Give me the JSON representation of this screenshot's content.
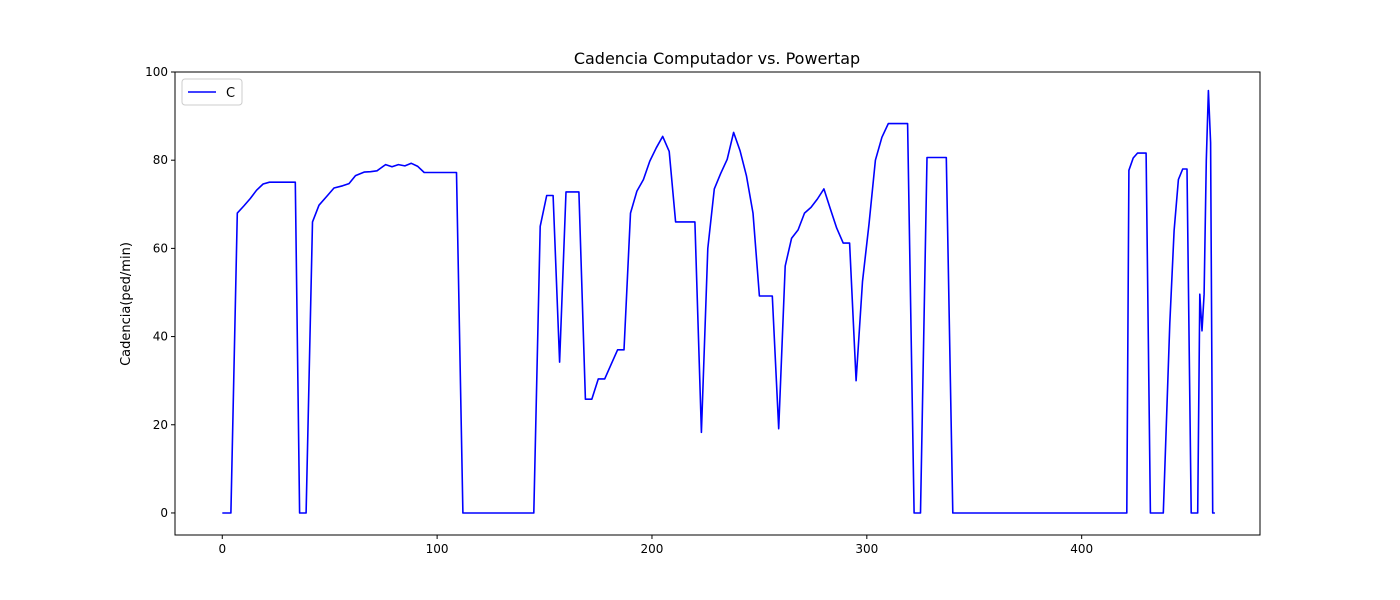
{
  "chart_data": {
    "type": "line",
    "title": "Cadencia Computador vs. Powertap",
    "xlabel": "",
    "ylabel": "Cadencia(ped/min)",
    "xlim": [
      -22,
      483
    ],
    "ylim": [
      -5,
      100
    ],
    "xticks": [
      0,
      100,
      200,
      300,
      400
    ],
    "yticks": [
      0,
      20,
      40,
      60,
      80,
      100
    ],
    "grid": false,
    "legend_position": "upper-left",
    "series": [
      {
        "name": "C",
        "color": "#0000ff",
        "x": [
          0,
          4,
          7,
          10,
          13,
          16,
          19,
          22,
          25,
          28,
          31,
          34,
          36,
          39,
          42,
          45,
          49,
          52,
          56,
          59,
          62,
          66,
          69,
          72,
          76,
          79,
          82,
          85,
          88,
          91,
          94,
          97,
          100,
          103,
          106,
          109,
          112,
          115,
          118,
          121,
          145,
          148,
          151,
          154,
          157,
          160,
          163,
          166,
          169,
          172,
          175,
          178,
          181,
          184,
          187,
          190,
          193,
          196,
          199,
          202,
          205,
          208,
          211,
          214,
          217,
          220,
          223,
          226,
          229,
          232,
          235,
          238,
          241,
          244,
          247,
          250,
          253,
          256,
          259,
          262,
          265,
          268,
          271,
          274,
          277,
          280,
          283,
          286,
          289,
          292,
          295,
          298,
          301,
          304,
          307,
          310,
          313,
          316,
          319,
          322,
          325,
          328,
          331,
          334,
          337,
          340,
          343,
          421,
          422,
          424,
          426,
          428,
          430,
          432,
          435,
          438,
          441,
          443,
          445,
          447,
          449,
          451,
          452,
          454,
          455,
          456,
          457,
          458,
          459,
          460,
          461,
          462
        ],
        "values": [
          0,
          0,
          68,
          69.6,
          71.3,
          73.2,
          74.6,
          75,
          75,
          75,
          75,
          75,
          0,
          0,
          66,
          69.8,
          72,
          73.7,
          74.2,
          74.7,
          76.5,
          77.3,
          77.4,
          77.6,
          79,
          78.5,
          79,
          78.7,
          79.3,
          78.6,
          77.2,
          77.2,
          77.2,
          77.2,
          77.2,
          77.2,
          0,
          0,
          0,
          0,
          0,
          65,
          72,
          72,
          34.2,
          72.8,
          72.8,
          72.8,
          25.8,
          25.8,
          30.4,
          30.4,
          33.7,
          37,
          37,
          68,
          73,
          75.6,
          79.8,
          82.8,
          85.4,
          82,
          66,
          66,
          66,
          66,
          18.3,
          60,
          73.5,
          77,
          80.2,
          86.3,
          82.1,
          76.4,
          68,
          49.2,
          49.2,
          49.2,
          19.1,
          56,
          62.3,
          64.2,
          68,
          69.3,
          71.2,
          73.5,
          69,
          64.6,
          61.2,
          61.2,
          30,
          52.5,
          65.5,
          80,
          85.2,
          88.3,
          88.3,
          88.3,
          88.3,
          0,
          0,
          80.6,
          80.6,
          80.6,
          80.6,
          0,
          0,
          0,
          77.7,
          80.5,
          81.6,
          81.6,
          81.6,
          0,
          0,
          0,
          43,
          64,
          75.6,
          78,
          78,
          0,
          0,
          0,
          49.6,
          41.3,
          49.6,
          80,
          95.8,
          84,
          0,
          0
        ]
      }
    ]
  }
}
